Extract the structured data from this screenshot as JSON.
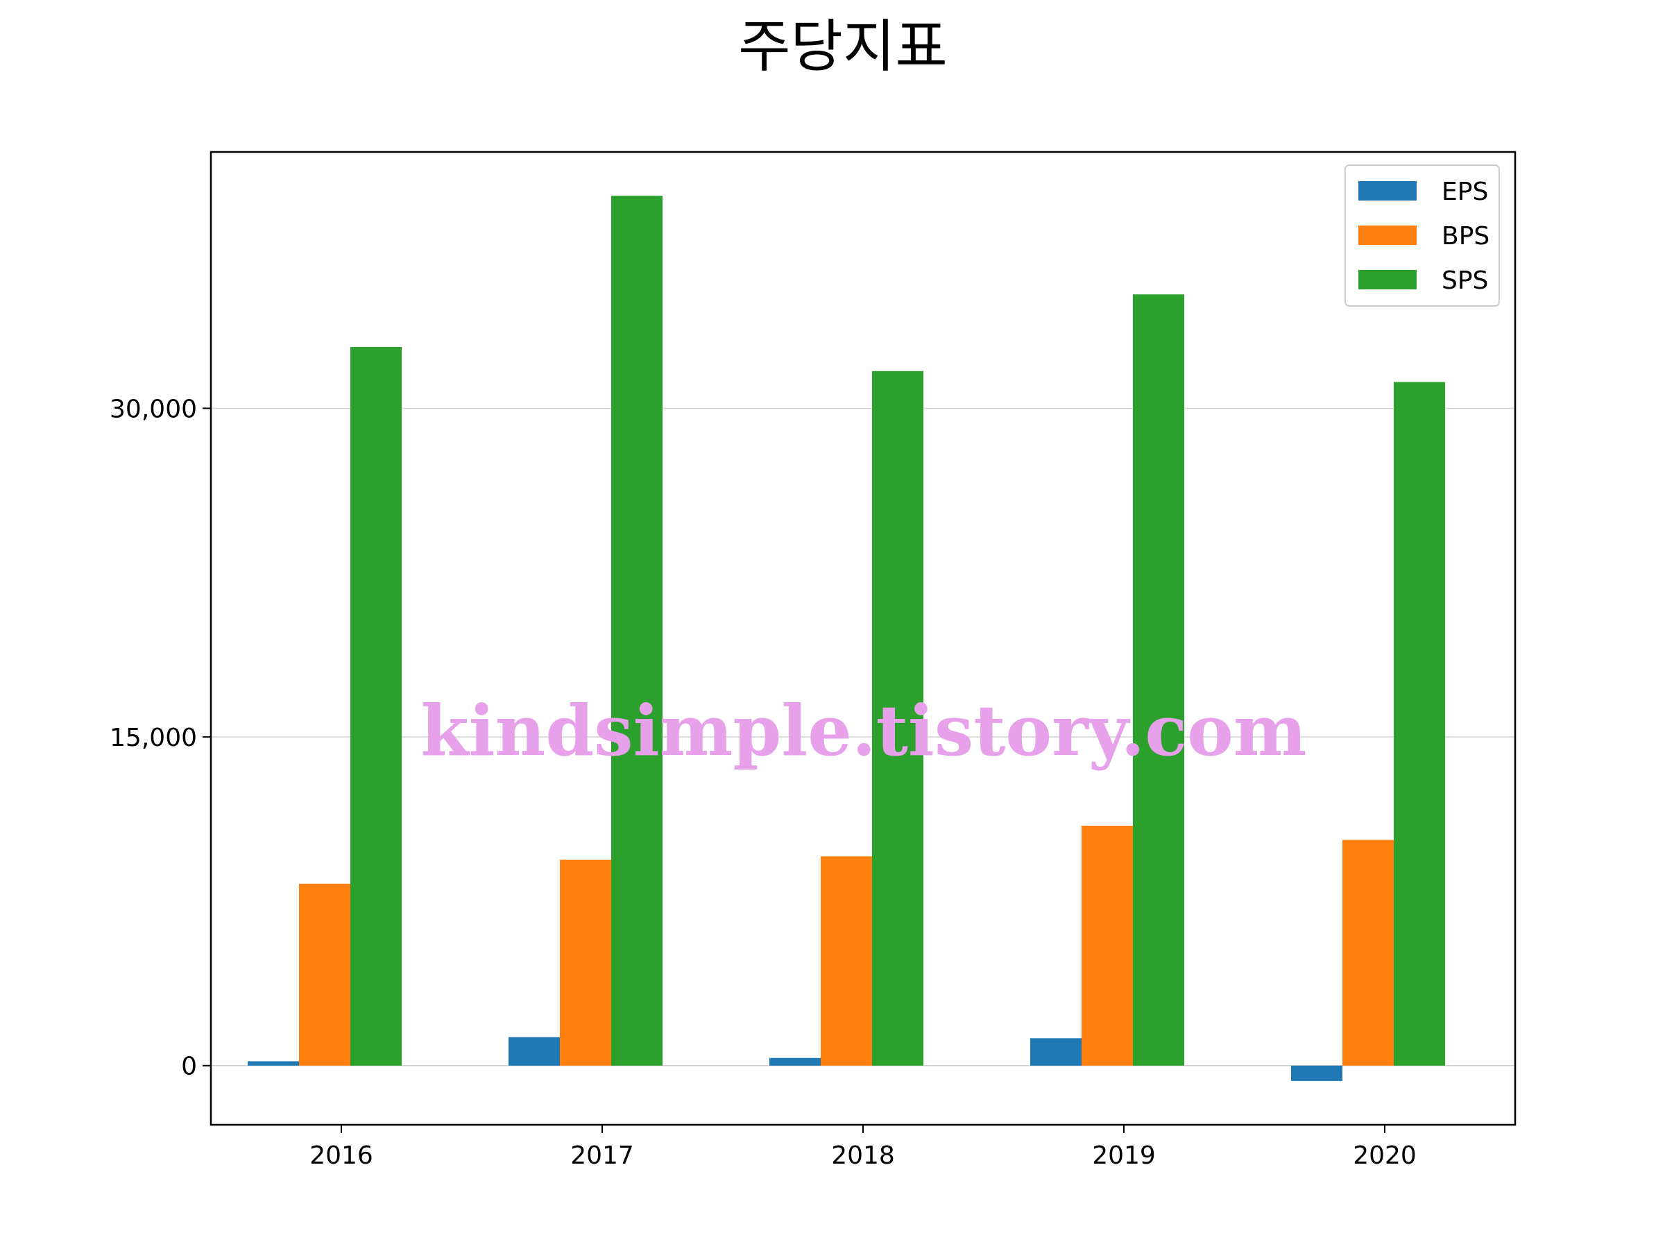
{
  "chart_data": {
    "type": "bar",
    "title": "주당지표",
    "xlabel": "",
    "ylabel": "",
    "categories": [
      "2016",
      "2017",
      "2018",
      "2019",
      "2020"
    ],
    "series": [
      {
        "name": "EPS",
        "color": "#1f77b4",
        "values": [
          200,
          1300,
          350,
          1250,
          -700
        ]
      },
      {
        "name": "BPS",
        "color": "#ff7f0e",
        "values": [
          8300,
          9400,
          9550,
          10950,
          10300
        ]
      },
      {
        "name": "SPS",
        "color": "#2ca02c",
        "values": [
          32800,
          39700,
          31700,
          35200,
          31200
        ]
      }
    ],
    "ylim": [
      -2700,
      41700
    ],
    "yticks": [
      0,
      15000,
      30000
    ],
    "ytick_labels": [
      "0",
      "15,000",
      "30,000"
    ],
    "grid": "y",
    "legend": "top-right",
    "watermark": "kindsimple.tistory.com"
  }
}
